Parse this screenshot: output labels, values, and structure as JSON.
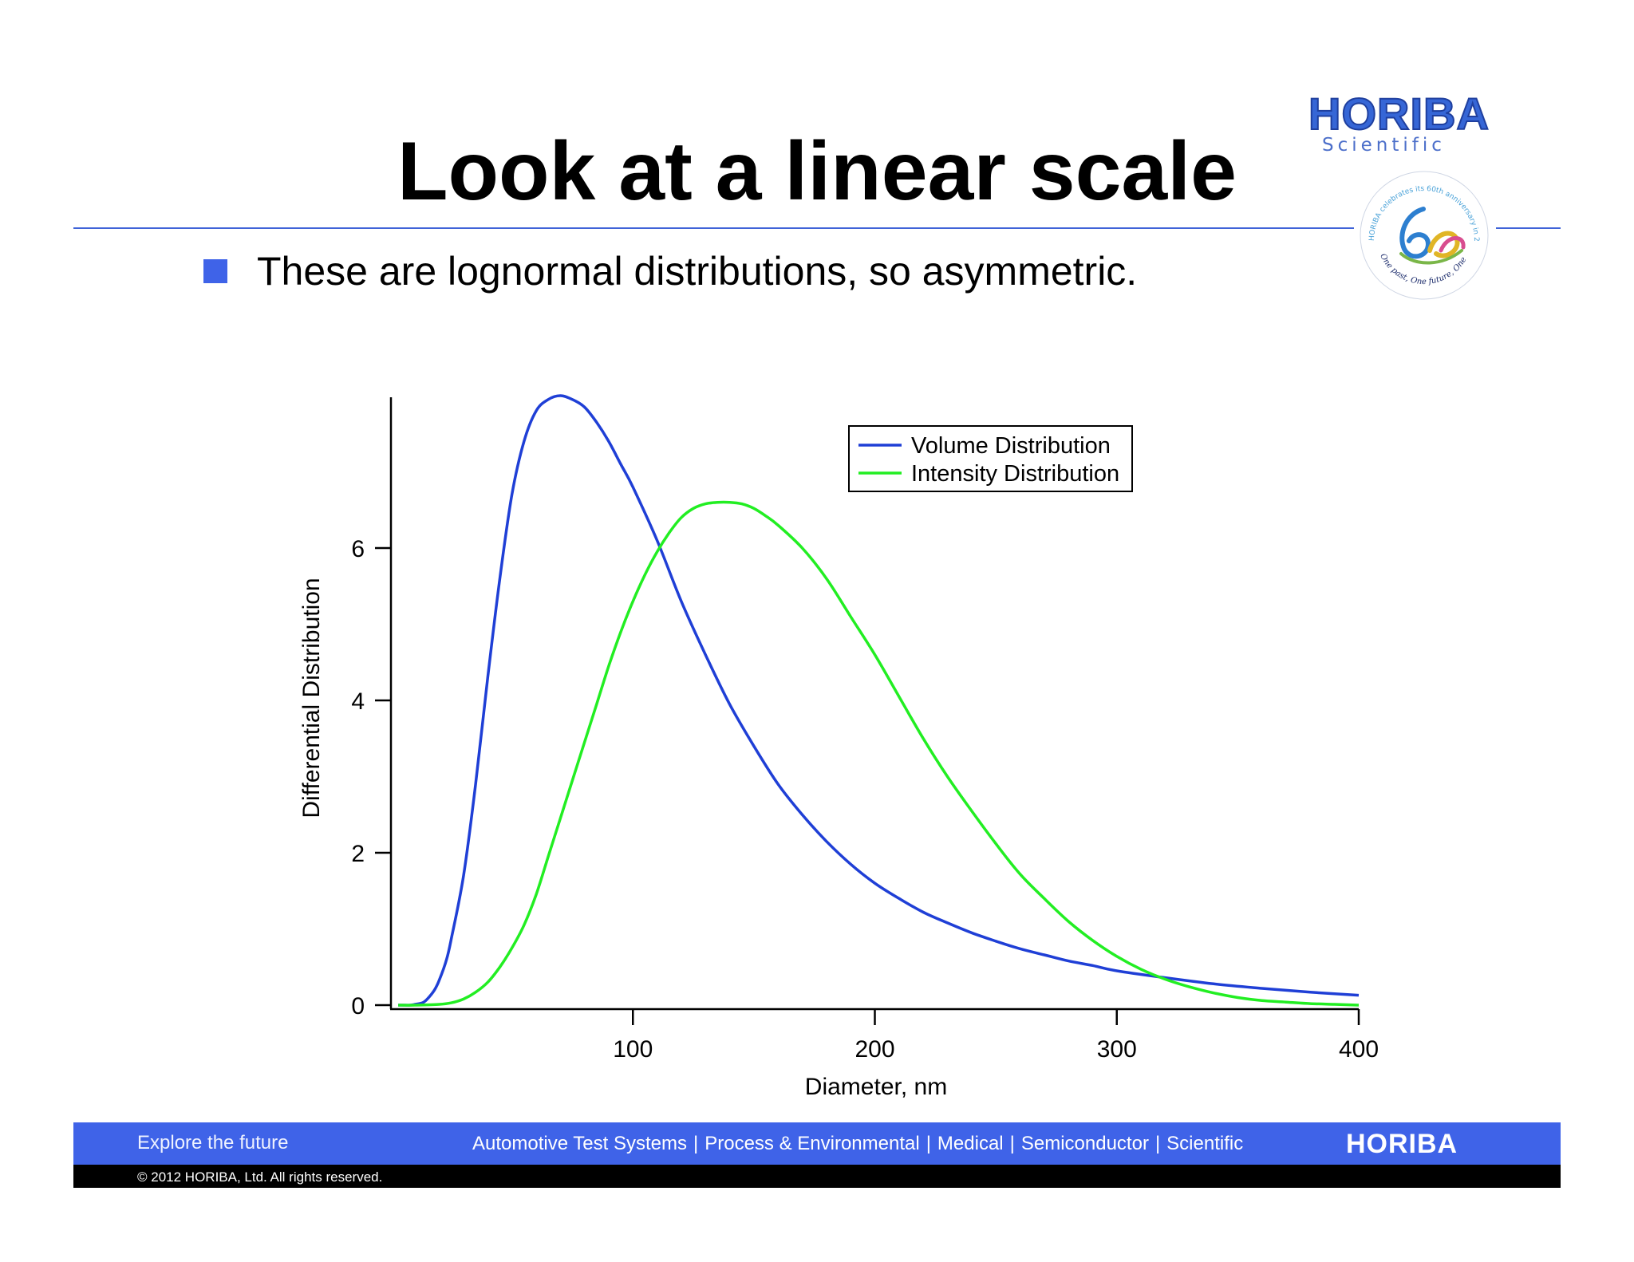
{
  "slide": {
    "title": "Look at a linear scale",
    "bullet": "These are lognormal distributions, so asymmetric."
  },
  "brand": {
    "logo_text": "HORIBA",
    "logo_subtext": "Scientific",
    "seal_ring_text": "HORIBA celebrates its 60th anniversary in 2013",
    "seal_motto": "One past, One future, One HORIBA",
    "seal_number": "60",
    "accent_color": "#3f63e8"
  },
  "footer": {
    "tagline": "Explore the future",
    "divisions": [
      "Automotive Test Systems",
      "Process & Environmental",
      "Medical",
      "Semiconductor",
      "Scientific"
    ],
    "separator": "|",
    "brand": "HORIBA",
    "copyright": "© 2012 HORIBA, Ltd. All rights reserved."
  },
  "chart_data": {
    "type": "line",
    "title": "",
    "xlabel": "Diameter, nm",
    "ylabel": "Differential Distribution",
    "xlim": [
      0,
      400
    ],
    "ylim": [
      0,
      8
    ],
    "xticks": [
      100,
      200,
      300,
      400
    ],
    "yticks": [
      0,
      2,
      4,
      6
    ],
    "grid": false,
    "legend_position": "top-right",
    "series": [
      {
        "name": "Volume Distribution",
        "color": "#1f3fd6",
        "x": [
          3,
          5,
          8,
          10,
          13,
          15,
          18,
          20,
          23,
          25,
          30,
          35,
          40,
          45,
          50,
          55,
          60,
          65,
          70,
          75,
          80,
          85,
          90,
          95,
          100,
          110,
          120,
          130,
          140,
          150,
          160,
          170,
          180,
          190,
          200,
          210,
          220,
          230,
          240,
          250,
          260,
          270,
          280,
          290,
          300,
          320,
          340,
          360,
          380,
          400
        ],
        "y": [
          0.0,
          0.0,
          0.0,
          0.01,
          0.03,
          0.08,
          0.2,
          0.33,
          0.6,
          0.88,
          1.7,
          2.9,
          4.3,
          5.6,
          6.7,
          7.4,
          7.8,
          7.95,
          8.0,
          7.95,
          7.85,
          7.65,
          7.4,
          7.1,
          6.8,
          6.1,
          5.3,
          4.6,
          3.95,
          3.4,
          2.9,
          2.5,
          2.15,
          1.85,
          1.6,
          1.4,
          1.22,
          1.08,
          0.95,
          0.84,
          0.74,
          0.66,
          0.58,
          0.52,
          0.45,
          0.36,
          0.28,
          0.22,
          0.17,
          0.13
        ]
      },
      {
        "name": "Intensity Distribution",
        "color": "#22ee22",
        "x": [
          3,
          10,
          20,
          25,
          30,
          35,
          40,
          45,
          50,
          55,
          60,
          65,
          70,
          75,
          80,
          85,
          90,
          95,
          100,
          105,
          110,
          115,
          120,
          125,
          130,
          135,
          140,
          145,
          150,
          155,
          160,
          170,
          180,
          190,
          200,
          210,
          220,
          230,
          240,
          250,
          260,
          270,
          280,
          290,
          300,
          310,
          320,
          330,
          340,
          350,
          360,
          370,
          380,
          390,
          400
        ],
        "y": [
          0.0,
          0.0,
          0.01,
          0.03,
          0.08,
          0.17,
          0.3,
          0.5,
          0.75,
          1.05,
          1.45,
          1.95,
          2.45,
          2.95,
          3.45,
          3.95,
          4.45,
          4.9,
          5.3,
          5.65,
          5.95,
          6.2,
          6.4,
          6.52,
          6.58,
          6.6,
          6.6,
          6.58,
          6.52,
          6.42,
          6.3,
          6.0,
          5.6,
          5.1,
          4.6,
          4.05,
          3.5,
          3.0,
          2.55,
          2.12,
          1.72,
          1.4,
          1.1,
          0.85,
          0.64,
          0.47,
          0.34,
          0.24,
          0.16,
          0.1,
          0.06,
          0.04,
          0.02,
          0.01,
          0.0
        ]
      }
    ]
  }
}
